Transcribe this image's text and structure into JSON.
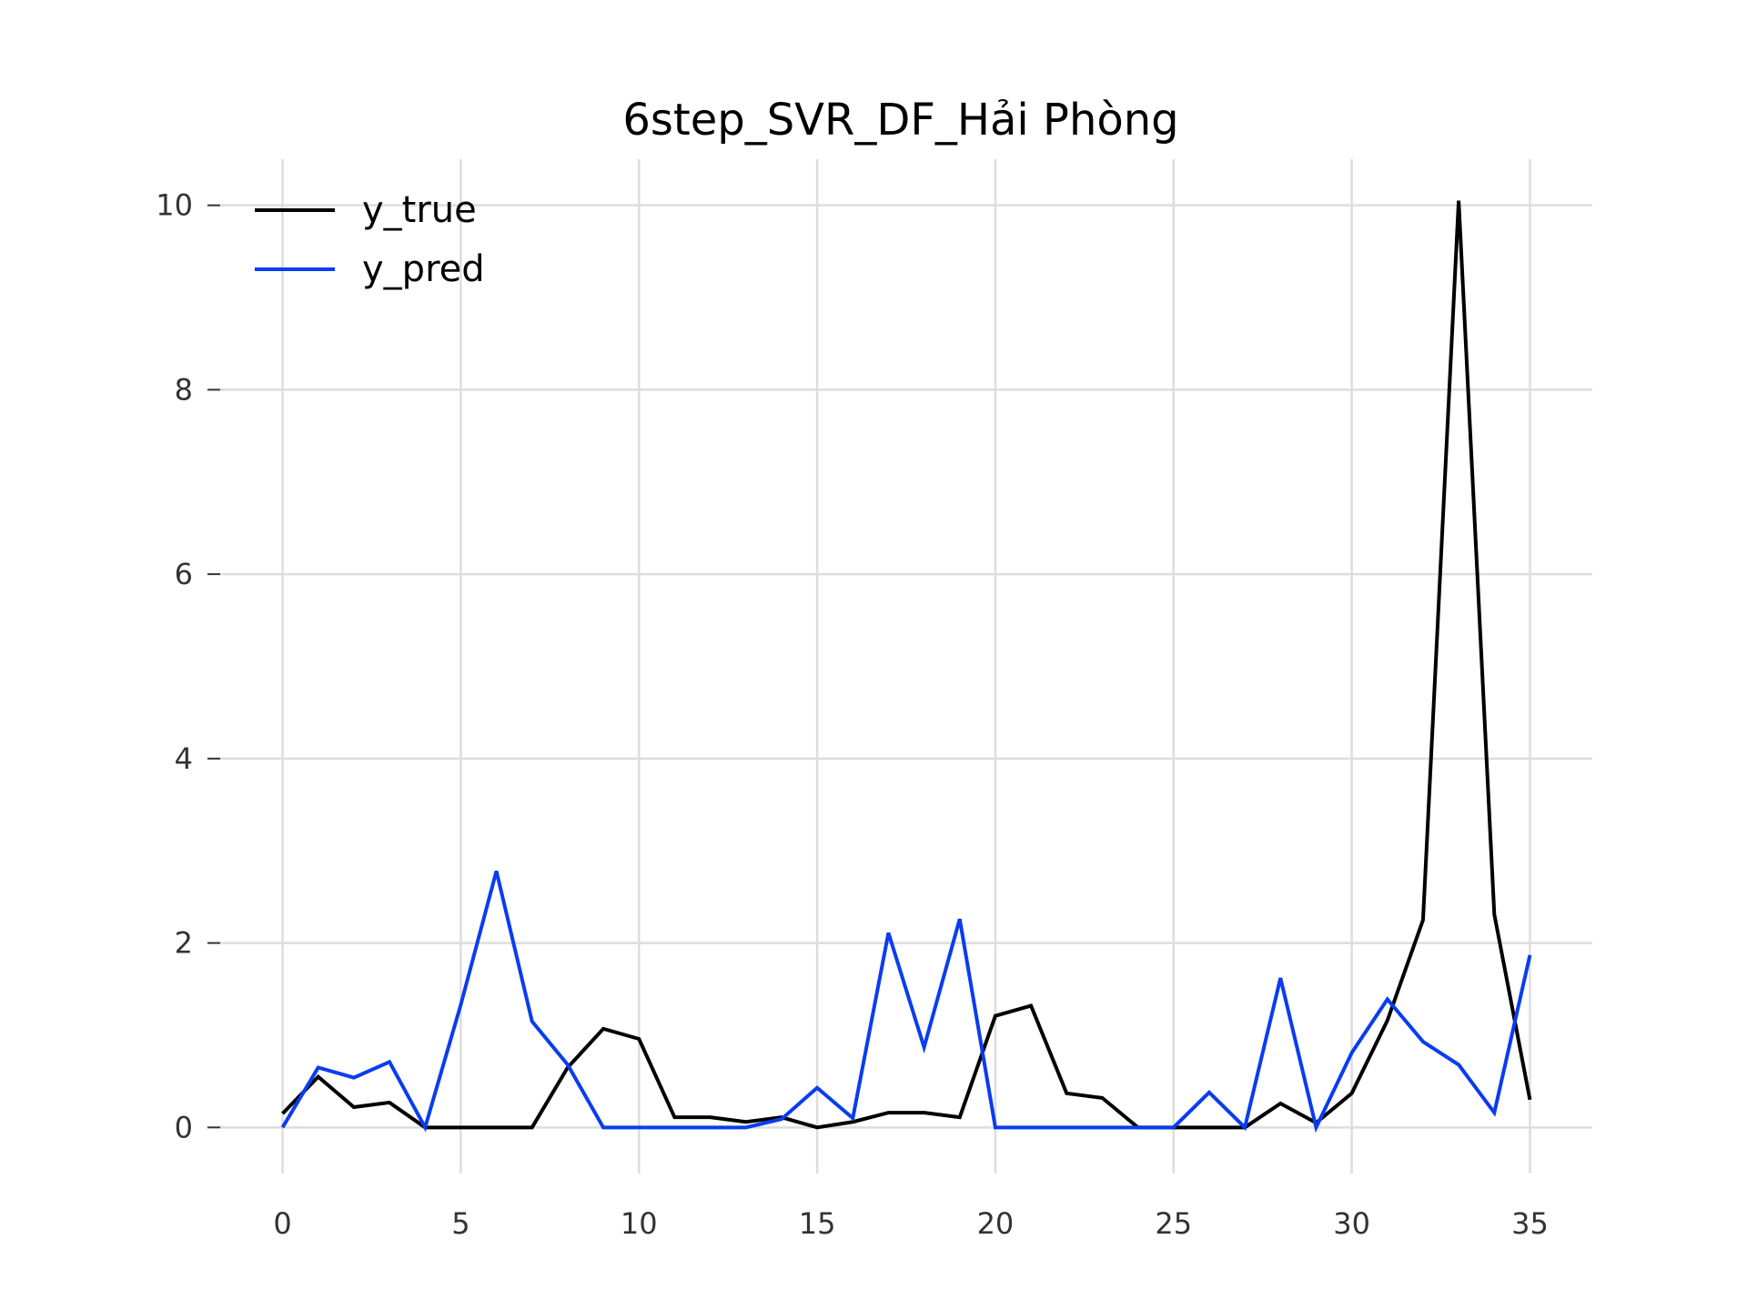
{
  "chart_data": {
    "type": "line",
    "title": "6step_SVR_DF_Hải Phòng",
    "xlabel": "",
    "ylabel": "",
    "x": [
      0,
      1,
      2,
      3,
      4,
      5,
      6,
      7,
      8,
      9,
      10,
      11,
      12,
      13,
      14,
      15,
      16,
      17,
      18,
      19,
      20,
      21,
      22,
      23,
      24,
      25,
      26,
      27,
      28,
      29,
      30,
      31,
      32,
      33,
      34,
      35
    ],
    "xlim": [
      -1.75,
      36.75
    ],
    "ylim": [
      -0.5,
      10.5
    ],
    "xticks": [
      0,
      5,
      10,
      15,
      20,
      25,
      30,
      35
    ],
    "yticks": [
      0,
      2,
      4,
      6,
      8,
      10
    ],
    "grid": true,
    "legend_position": "top-left",
    "series": [
      {
        "name": "y_true",
        "color": "#000000",
        "values": [
          0.15,
          0.55,
          0.22,
          0.27,
          0.0,
          0.0,
          0.0,
          0.0,
          0.65,
          1.07,
          0.96,
          0.11,
          0.11,
          0.06,
          0.11,
          0.0,
          0.06,
          0.16,
          0.16,
          0.11,
          1.21,
          1.32,
          0.37,
          0.32,
          0.0,
          0.0,
          0.0,
          0.0,
          0.26,
          0.05,
          0.37,
          1.16,
          2.25,
          10.05,
          2.31,
          0.3
        ]
      },
      {
        "name": "y_pred",
        "color": "#0a3cf0",
        "values": [
          0.0,
          0.65,
          0.54,
          0.71,
          0.0,
          1.33,
          2.78,
          1.15,
          0.68,
          0.0,
          0.0,
          0.0,
          0.0,
          0.0,
          0.09,
          0.43,
          0.1,
          2.11,
          0.87,
          2.26,
          0.0,
          0.0,
          0.0,
          0.0,
          0.0,
          0.0,
          0.38,
          0.0,
          1.62,
          0.0,
          0.81,
          1.39,
          0.93,
          0.68,
          0.16,
          1.87
        ]
      }
    ]
  }
}
